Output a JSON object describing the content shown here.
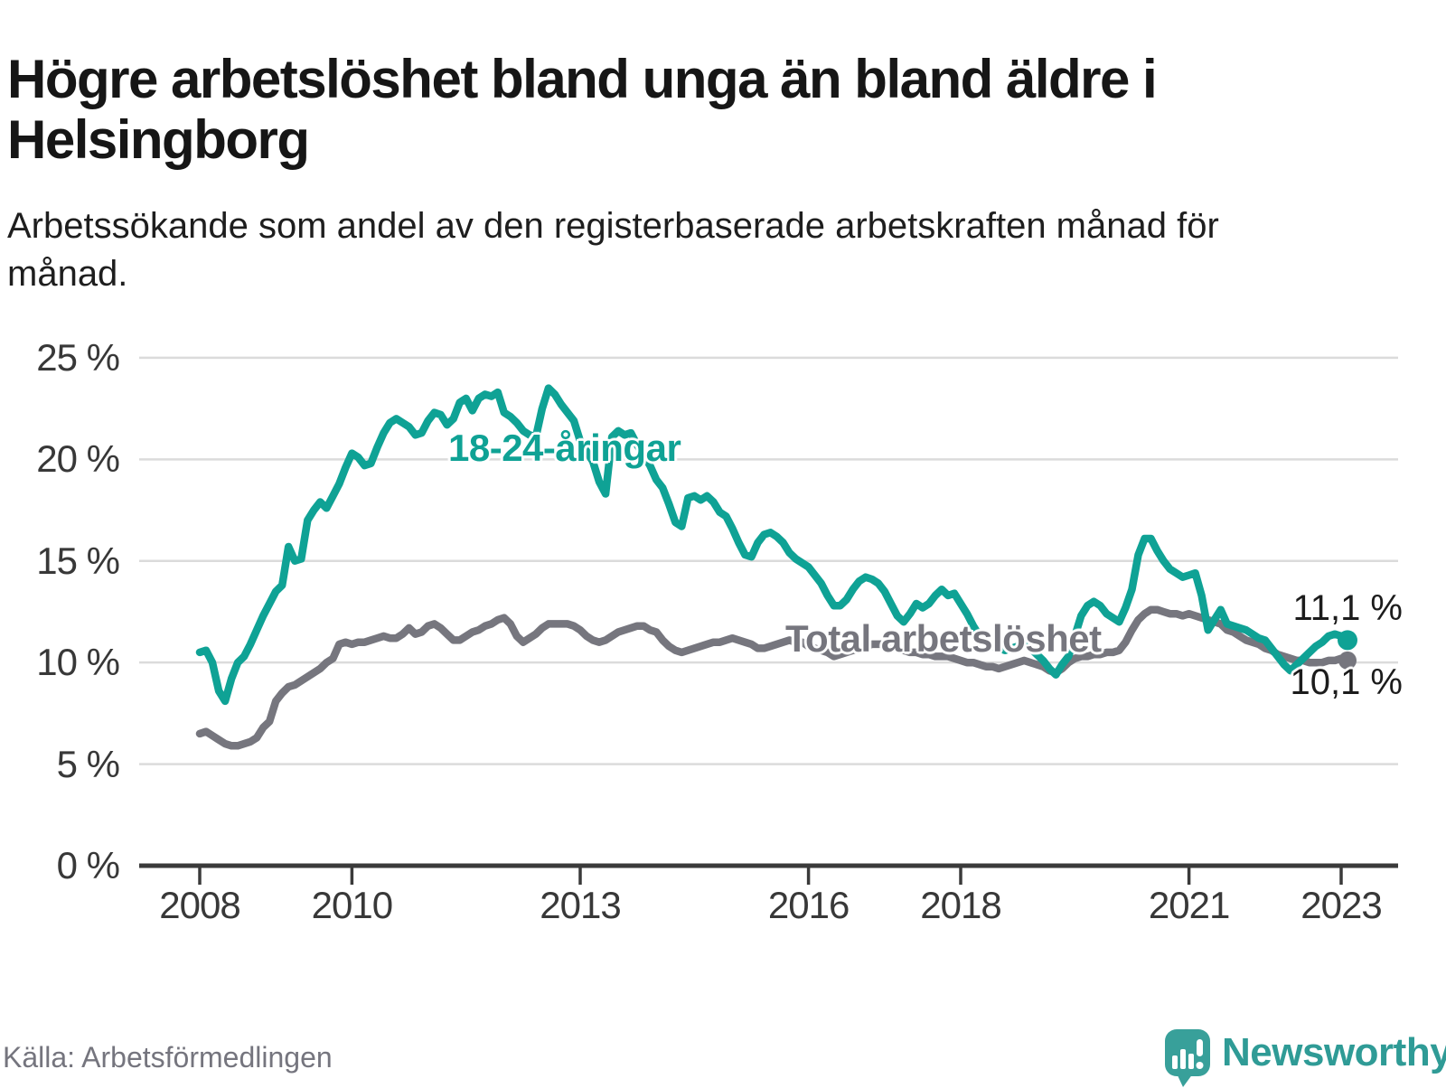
{
  "header": {
    "title": "Högre arbetslöshet bland unga än bland äldre i Helsingborg",
    "subtitle": "Arbetssökande som andel av den registerbaserade arbetskraften månad för månad."
  },
  "footer": {
    "source": "Källa: Arbetsförmedlingen",
    "brand": "Newsworthy",
    "logo_icon": "speech-bubble-bar-chart-icon"
  },
  "colors": {
    "youth": "#0FA295",
    "total": "#76767E",
    "grid": "#DBDBDB",
    "axis": "#3A3A3A",
    "tick_text": "#383838",
    "value_text": "#1c1c1c",
    "title_text": "#161616",
    "source_text": "#75757E",
    "brand_teal": "#2F9B96",
    "logo_bubble": "#38A09A"
  },
  "chart_data": {
    "type": "line",
    "title": "Högre arbetslöshet bland unga än bland äldre i Helsingborg",
    "subtitle": "Arbetssökande som andel av den registerbaserade arbetskraften månad för månad.",
    "unit": "%",
    "frequency": "monthly",
    "x_start": "2008-01",
    "x_end": "2023-02",
    "ylim": [
      0,
      25
    ],
    "grid": "horizontal",
    "legend_position": "inline-labels",
    "yticks": [
      {
        "value": 0,
        "label": "0 %"
      },
      {
        "value": 5,
        "label": "5 %"
      },
      {
        "value": 10,
        "label": "10 %"
      },
      {
        "value": 15,
        "label": "15 %"
      },
      {
        "value": 20,
        "label": "20 %"
      },
      {
        "value": 25,
        "label": "25 %"
      }
    ],
    "xticks": [
      {
        "year": 2008,
        "label": "2008"
      },
      {
        "year": 2010,
        "label": "2010"
      },
      {
        "year": 2013,
        "label": "2013"
      },
      {
        "year": 2016,
        "label": "2016"
      },
      {
        "year": 2018,
        "label": "2018"
      },
      {
        "year": 2021,
        "label": "2021"
      },
      {
        "year": 2023,
        "label": "2023"
      }
    ],
    "series": [
      {
        "name": "18-24-åringar",
        "color": "#0FA295",
        "end_label": "11,1 %",
        "end_value": 11.1,
        "values": [
          10.5,
          10.6,
          10.0,
          8.6,
          8.1,
          9.2,
          10.0,
          10.3,
          10.9,
          11.6,
          12.3,
          12.9,
          13.5,
          13.8,
          15.7,
          15.0,
          15.1,
          17.0,
          17.5,
          17.9,
          17.6,
          18.2,
          18.8,
          19.6,
          20.3,
          20.1,
          19.7,
          19.8,
          20.6,
          21.3,
          21.8,
          22.0,
          21.8,
          21.6,
          21.2,
          21.3,
          21.9,
          22.3,
          22.2,
          21.7,
          22.0,
          22.8,
          23.0,
          22.4,
          23.0,
          23.2,
          23.1,
          23.3,
          22.3,
          22.1,
          21.8,
          21.4,
          21.2,
          21.1,
          22.5,
          23.5,
          23.2,
          22.7,
          22.3,
          21.9,
          20.9,
          20.4,
          19.9,
          18.9,
          18.3,
          21.1,
          21.4,
          21.2,
          21.3,
          20.7,
          20.2,
          19.7,
          19.0,
          18.6,
          17.8,
          16.9,
          16.7,
          18.1,
          18.2,
          18.0,
          18.2,
          17.9,
          17.4,
          17.2,
          16.6,
          15.9,
          15.3,
          15.2,
          15.9,
          16.3,
          16.4,
          16.2,
          15.9,
          15.4,
          15.1,
          14.9,
          14.7,
          14.3,
          13.9,
          13.3,
          12.8,
          12.8,
          13.1,
          13.6,
          14.0,
          14.2,
          14.1,
          13.9,
          13.5,
          12.9,
          12.3,
          12.0,
          12.4,
          12.9,
          12.7,
          12.9,
          13.3,
          13.6,
          13.3,
          13.4,
          12.9,
          12.4,
          11.8,
          11.3,
          11.0,
          10.8,
          10.7,
          10.6,
          10.7,
          10.8,
          10.9,
          10.7,
          10.4,
          10.1,
          9.7,
          9.4,
          9.9,
          10.3,
          11.3,
          12.3,
          12.8,
          13.0,
          12.8,
          12.4,
          12.2,
          12.0,
          12.7,
          13.6,
          15.3,
          16.1,
          16.1,
          15.5,
          15.0,
          14.6,
          14.4,
          14.2,
          14.3,
          14.4,
          13.3,
          11.6,
          12.1,
          12.6,
          11.9,
          11.8,
          11.7,
          11.6,
          11.4,
          11.2,
          11.1,
          10.7,
          10.3,
          9.9,
          9.6,
          9.9,
          10.2,
          10.5,
          10.8,
          11.0,
          11.3,
          11.4,
          11.3,
          11.1
        ]
      },
      {
        "name": "Total arbetslöshet",
        "color": "#76767E",
        "end_label": "10,1 %",
        "end_value": 10.1,
        "values": [
          6.5,
          6.6,
          6.4,
          6.2,
          6.0,
          5.9,
          5.9,
          6.0,
          6.1,
          6.3,
          6.8,
          7.1,
          8.1,
          8.5,
          8.8,
          8.9,
          9.1,
          9.3,
          9.5,
          9.7,
          10.0,
          10.2,
          10.9,
          11.0,
          10.9,
          11.0,
          11.0,
          11.1,
          11.2,
          11.3,
          11.2,
          11.2,
          11.4,
          11.7,
          11.4,
          11.5,
          11.8,
          11.9,
          11.7,
          11.4,
          11.1,
          11.1,
          11.3,
          11.5,
          11.6,
          11.8,
          11.9,
          12.1,
          12.2,
          11.9,
          11.3,
          11.0,
          11.2,
          11.4,
          11.7,
          11.9,
          11.9,
          11.9,
          11.9,
          11.8,
          11.6,
          11.3,
          11.1,
          11.0,
          11.1,
          11.3,
          11.5,
          11.6,
          11.7,
          11.8,
          11.8,
          11.6,
          11.5,
          11.1,
          10.8,
          10.6,
          10.5,
          10.6,
          10.7,
          10.8,
          10.9,
          11.0,
          11.0,
          11.1,
          11.2,
          11.1,
          11.0,
          10.9,
          10.7,
          10.7,
          10.8,
          10.9,
          11.0,
          11.1,
          11.0,
          11.0,
          10.8,
          10.7,
          10.6,
          10.5,
          10.3,
          10.4,
          10.5,
          10.6,
          10.7,
          10.8,
          10.9,
          10.9,
          10.9,
          10.8,
          10.7,
          10.6,
          10.5,
          10.5,
          10.4,
          10.4,
          10.3,
          10.3,
          10.3,
          10.2,
          10.1,
          10.0,
          10.0,
          9.9,
          9.8,
          9.8,
          9.7,
          9.8,
          9.9,
          10.0,
          10.1,
          10.0,
          9.9,
          9.8,
          9.6,
          9.5,
          9.7,
          10.0,
          10.2,
          10.3,
          10.3,
          10.4,
          10.4,
          10.5,
          10.5,
          10.6,
          11.0,
          11.6,
          12.1,
          12.4,
          12.6,
          12.6,
          12.5,
          12.4,
          12.4,
          12.3,
          12.4,
          12.3,
          12.2,
          12.1,
          12.0,
          11.9,
          11.6,
          11.5,
          11.3,
          11.1,
          11.0,
          10.9,
          10.7,
          10.6,
          10.4,
          10.3,
          10.2,
          10.1,
          10.1,
          10.0,
          10.0,
          10.0,
          10.1,
          10.1,
          10.2,
          10.1
        ]
      }
    ]
  }
}
